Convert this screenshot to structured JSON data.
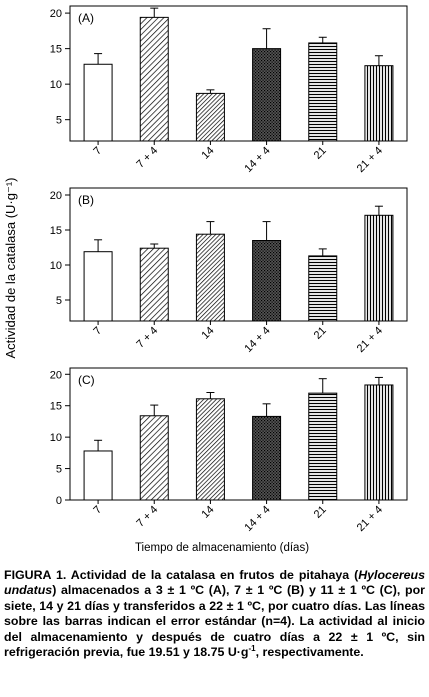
{
  "figure": {
    "ylabel": "Actividad de la catalasa (U·g⁻¹)",
    "xlabel": "Tiempo de almacenamiento (días)"
  },
  "chart_data": [
    {
      "type": "bar",
      "panel_label": "(A)",
      "categories": [
        "7",
        "7 + 4",
        "14",
        "14 + 4",
        "21",
        "21 + 4"
      ],
      "values": [
        12.8,
        19.4,
        8.7,
        15.0,
        15.8,
        12.6
      ],
      "error": [
        1.5,
        1.3,
        0.5,
        2.8,
        0.8,
        1.4
      ],
      "ylim": [
        2,
        21
      ],
      "yticks": [
        5,
        10,
        15,
        20
      ],
      "patterns": [
        "white",
        "diag",
        "diag-dense",
        "cross",
        "horizontal",
        "vertical"
      ],
      "xlabel": "",
      "ylabel": ""
    },
    {
      "type": "bar",
      "panel_label": "(B)",
      "categories": [
        "7",
        "7 + 4",
        "14",
        "14 + 4",
        "21",
        "21 + 4"
      ],
      "values": [
        11.9,
        12.4,
        14.4,
        13.5,
        11.3,
        17.1
      ],
      "error": [
        1.7,
        0.6,
        1.8,
        2.7,
        1.0,
        1.3
      ],
      "ylim": [
        2,
        21
      ],
      "yticks": [
        5,
        10,
        15,
        20
      ],
      "patterns": [
        "white",
        "diag",
        "diag-dense",
        "cross",
        "horizontal",
        "vertical"
      ],
      "xlabel": "",
      "ylabel": ""
    },
    {
      "type": "bar",
      "panel_label": "(C)",
      "categories": [
        "7",
        "7 + 4",
        "14",
        "14 + 4",
        "21",
        "21 + 4"
      ],
      "values": [
        7.8,
        13.4,
        16.1,
        13.3,
        17.0,
        18.3
      ],
      "error": [
        1.7,
        1.7,
        1.0,
        2.0,
        2.3,
        1.2
      ],
      "ylim": [
        0,
        21
      ],
      "yticks": [
        0,
        5,
        10,
        15,
        20
      ],
      "patterns": [
        "white",
        "diag",
        "diag-dense",
        "cross",
        "horizontal",
        "vertical"
      ],
      "xlabel": "",
      "ylabel": ""
    }
  ],
  "caption": {
    "label": "FIGURA 1.",
    "text_1": " Actividad de la catalasa en frutos de pitahaya (",
    "species": "Hylocereus undatus",
    "text_2": ") almacenados a 3 ± 1 ºC (A), 7 ± 1 ºC (B) y 11 ± 1 ºC (C), por siete, 14 y 21 días y transferidos a 22 ± 1 ºC, por cuatro días. Las líneas sobre las barras indican el error estándar (n=4). La actividad al inicio del almacenamiento y después de cuatro días a 22 ± 1 ºC, sin refrigeración previa, fue 19.51 y 18.75 U·g",
    "superscript": "-1",
    "text_3": ", respectivamente."
  }
}
